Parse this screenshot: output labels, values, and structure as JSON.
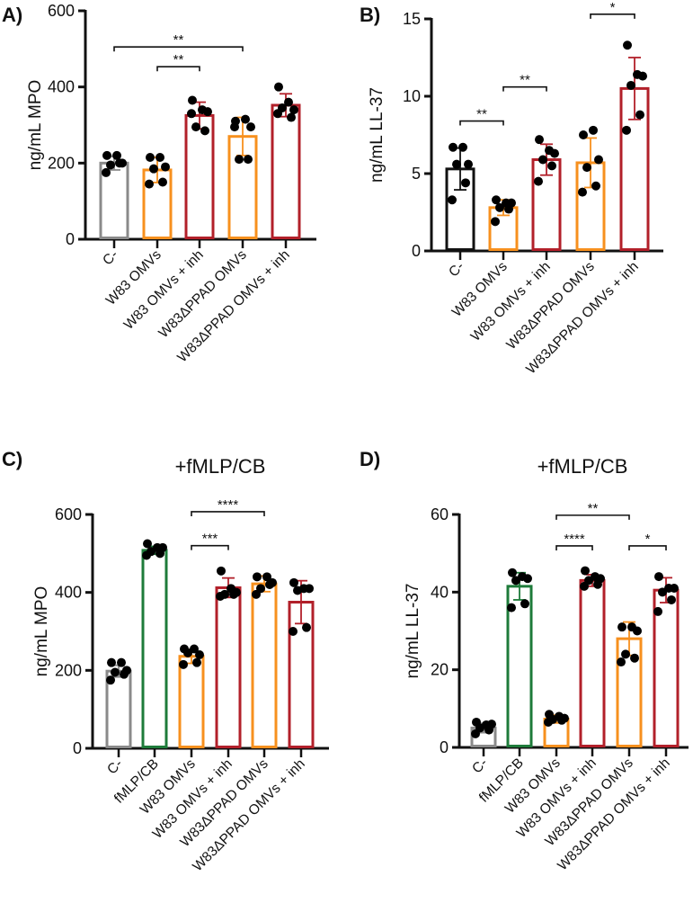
{
  "chart_data": [
    {
      "type": "bar",
      "panel_label": "A)",
      "title": "",
      "ylabel": "ng/mL MPO",
      "ylim": [
        0,
        600
      ],
      "yticks": [
        0,
        200,
        400,
        600
      ],
      "categories": [
        "C-",
        "W83 OMVs",
        "W83 OMVs + inh",
        "W83ΔPPAD OMVs",
        "W83ΔPPAD OMVs + inh"
      ],
      "colors": [
        "#8a8a8a",
        "#f7901e",
        "#b2202a",
        "#f7901e",
        "#b2202a"
      ],
      "means": [
        200,
        182,
        325,
        270,
        352
      ],
      "sd": [
        18,
        33,
        35,
        50,
        30
      ],
      "points": [
        [
          220,
          220,
          200,
          195,
          200,
          175
        ],
        [
          215,
          215,
          190,
          185,
          150,
          145
        ],
        [
          365,
          340,
          335,
          295,
          285,
          330
        ],
        [
          310,
          315,
          295,
          210,
          210,
          295
        ],
        [
          400,
          360,
          340,
          345,
          320,
          330
        ]
      ],
      "significance": [
        {
          "from": 0,
          "to": 3,
          "y": 505,
          "label": "**"
        },
        {
          "from": 1,
          "to": 2,
          "y": 453,
          "label": "**"
        }
      ]
    },
    {
      "type": "bar",
      "panel_label": "B)",
      "title": "",
      "ylabel": "ng/mL LL-37",
      "ylim": [
        0,
        15
      ],
      "yticks": [
        0,
        5,
        10,
        15
      ],
      "categories": [
        "C-",
        "W83 OMVs",
        "W83 OMVs + inh",
        "W83ΔPPAD OMVs",
        "W83ΔPPAD OMVs + inh"
      ],
      "colors": [
        "#111111",
        "#f7901e",
        "#b2202a",
        "#f7901e",
        "#b2202a"
      ],
      "means": [
        5.3,
        2.8,
        5.9,
        5.7,
        10.5
      ],
      "sd": [
        1.35,
        0.5,
        1.0,
        1.6,
        2.0
      ],
      "points": [
        [
          6.7,
          6.7,
          5.6,
          5.6,
          4.4,
          3.3
        ],
        [
          3.3,
          3.1,
          3.1,
          2.8,
          2.7,
          1.9
        ],
        [
          7.2,
          6.5,
          6.3,
          5.9,
          5.5,
          4.5
        ],
        [
          7.5,
          7.8,
          5.9,
          5.4,
          4.2,
          3.8
        ],
        [
          13.3,
          11.4,
          11.3,
          10.7,
          8.8,
          7.8
        ]
      ],
      "significance": [
        {
          "from": 0,
          "to": 1,
          "y": 8.4,
          "label": "**"
        },
        {
          "from": 1,
          "to": 2,
          "y": 10.6,
          "label": "**"
        },
        {
          "from": 3,
          "to": 4,
          "y": 15.3,
          "label": "*"
        }
      ]
    },
    {
      "type": "bar",
      "panel_label": "C)",
      "title": "+fMLP/CB",
      "ylabel": "ng/mL MPO",
      "ylim": [
        0,
        600
      ],
      "yticks": [
        0,
        200,
        400,
        600
      ],
      "categories": [
        "C-",
        "fMLP/CB",
        "W83 OMVs",
        "W83 OMVs + inh",
        "W83ΔPPAD OMVs",
        "W83ΔPPAD OMVs + inh"
      ],
      "colors": [
        "#8a8a8a",
        "#1e7b3a",
        "#f7901e",
        "#b2202a",
        "#f7901e",
        "#b2202a"
      ],
      "means": [
        198,
        508,
        236,
        412,
        422,
        375
      ],
      "sd": [
        15,
        10,
        18,
        25,
        20,
        55
      ],
      "points": [
        [
          220,
          220,
          200,
          195,
          190,
          175
        ],
        [
          525,
          515,
          515,
          505,
          500,
          495
        ],
        [
          255,
          255,
          240,
          245,
          220,
          215
        ],
        [
          455,
          410,
          400,
          395,
          395,
          390
        ],
        [
          440,
          440,
          425,
          410,
          420,
          395
        ],
        [
          425,
          410,
          410,
          405,
          310,
          300
        ]
      ],
      "significance": [
        {
          "from": 2,
          "to": 3,
          "y": 520,
          "label": "***"
        },
        {
          "from": 2,
          "to": 4,
          "y": 607,
          "label": "****"
        }
      ]
    },
    {
      "type": "bar",
      "panel_label": "D)",
      "title": "+fMLP/CB",
      "ylabel": "ng/mL LL-37",
      "ylim": [
        0,
        60
      ],
      "yticks": [
        0,
        20,
        40,
        60
      ],
      "categories": [
        "C-",
        "fMLP/CB",
        "W83 OMVs",
        "W83 OMVs + inh",
        "W83ΔPPAD OMVs",
        "W83ΔPPAD OMVs + inh"
      ],
      "colors": [
        "#8a8a8a",
        "#1e7b3a",
        "#f7901e",
        "#b2202a",
        "#f7901e",
        "#b2202a"
      ],
      "means": [
        5,
        41.5,
        7.3,
        43,
        28,
        40.5
      ],
      "sd": [
        1.2,
        3.5,
        1.0,
        1.5,
        4.3,
        3.2
      ],
      "points": [
        [
          6.5,
          5.8,
          6,
          5,
          4.5,
          3.5
        ],
        [
          45,
          44,
          43.5,
          43,
          37,
          36
        ],
        [
          8.5,
          8,
          7.5,
          7.2,
          7,
          6.5
        ],
        [
          45.5,
          44,
          43.5,
          43,
          42,
          41.5
        ],
        [
          31,
          31,
          30,
          24,
          23,
          22
        ],
        [
          44,
          41,
          41,
          40,
          38,
          35
        ]
      ],
      "significance": [
        {
          "from": 2,
          "to": 3,
          "y": 51.9,
          "label": "****"
        },
        {
          "from": 2,
          "to": 4,
          "y": 59.8,
          "label": "**"
        },
        {
          "from": 4,
          "to": 5,
          "y": 51.9,
          "label": "*"
        }
      ]
    }
  ]
}
